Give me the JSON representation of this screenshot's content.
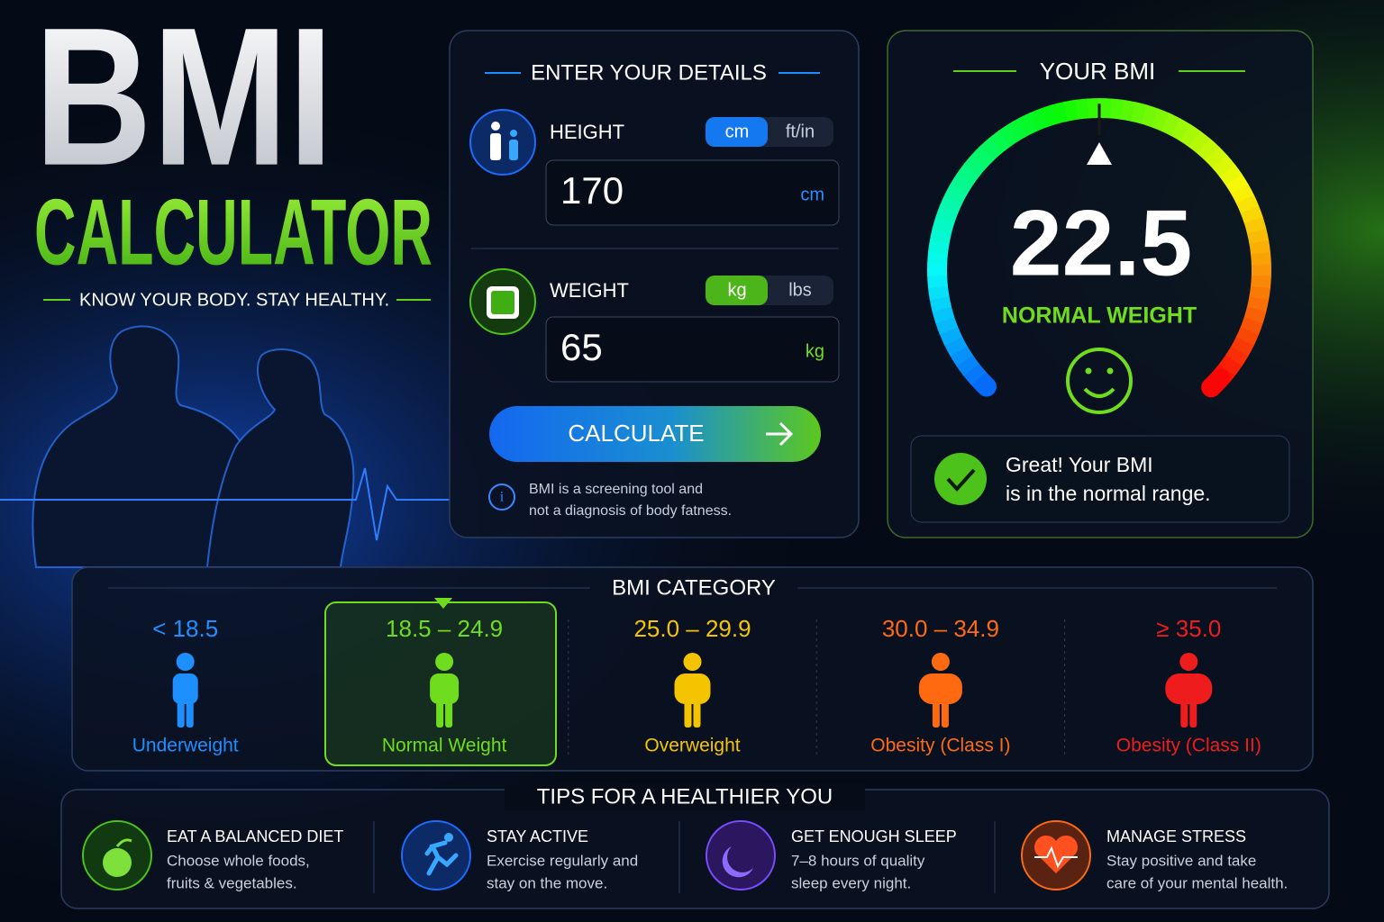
{
  "hero": {
    "title": "BMI",
    "subtitle": "CALCULATOR",
    "tagline": "KNOW YOUR BODY. STAY HEALTHY."
  },
  "details": {
    "title": "ENTER YOUR DETAILS",
    "height": {
      "label": "HEIGHT",
      "units": [
        "cm",
        "ft/in"
      ],
      "value": 170,
      "unit": "cm"
    },
    "weight": {
      "label": "WEIGHT",
      "units": [
        "kg",
        "lbs"
      ],
      "value": 65,
      "unit": "kg"
    },
    "button": "CALCULATE",
    "note": [
      "BMI is a screening tool and",
      "not a diagnosis of body fatness."
    ]
  },
  "result": {
    "title": "YOUR BMI",
    "value": 22.5,
    "category": "NORMAL WEIGHT",
    "message": [
      "Great! Your BMI",
      "is in the normal range."
    ]
  },
  "categories": {
    "title": "BMI CATEGORY",
    "items": [
      {
        "range": "< 18.5",
        "label": "Underweight",
        "color": "#1e8fff"
      },
      {
        "range": "18.5 – 24.9",
        "label": "Normal Weight",
        "color": "#6fdc1e"
      },
      {
        "range": "25.0 – 29.9",
        "label": "Overweight",
        "color": "#f5c400"
      },
      {
        "range": "30.0 – 34.9",
        "label": "Obesity (Class I)",
        "color": "#ff6a10"
      },
      {
        "range": "≥ 35.0",
        "label": "Obesity (Class II)",
        "color": "#ee1c1c"
      }
    ]
  },
  "tips": {
    "title": "TIPS FOR A HEALTHIER YOU",
    "items": [
      {
        "title": "EAT A BALANCED DIET",
        "text": [
          "Choose whole foods,",
          "fruits & vegetables."
        ]
      },
      {
        "title": "STAY ACTIVE",
        "text": [
          "Exercise regularly and",
          "stay on the move."
        ]
      },
      {
        "title": "GET ENOUGH SLEEP",
        "text": [
          "7–8 hours of quality",
          "sleep every night."
        ]
      },
      {
        "title": "MANAGE STRESS",
        "text": [
          "Stay positive and take",
          "care of your mental health."
        ]
      }
    ]
  }
}
